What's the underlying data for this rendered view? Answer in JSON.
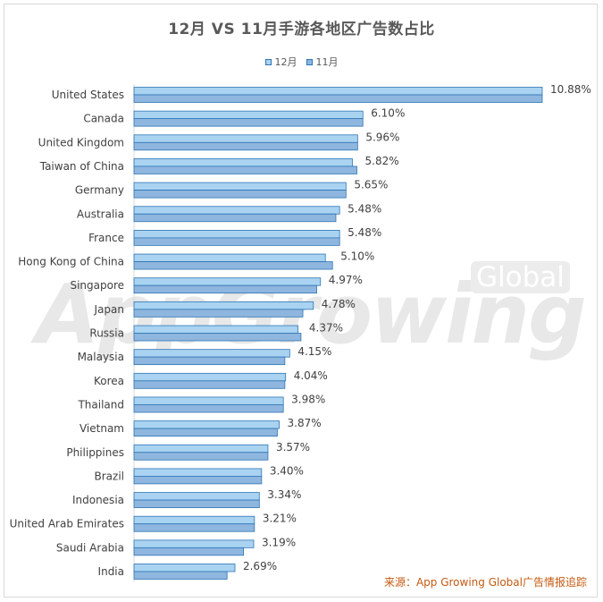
{
  "title": "12月 VS 11月手游各地区广告数占比",
  "source_label": "来源：App Growing Global广告情报追踪",
  "watermark": {
    "text": "AppGrowing",
    "badge": "Global"
  },
  "colors": {
    "dec": "#a9d3f1",
    "nov": "#8fb6de",
    "border": "#2e75b6"
  },
  "chart_data": {
    "type": "bar",
    "orientation": "horizontal",
    "title": "12月 VS 11月手游各地区广告数占比",
    "categories": [
      "United States",
      "Canada",
      "United Kingdom",
      "Taiwan of China",
      "Germany",
      "Australia",
      "France",
      "Hong Kong of China",
      "Singapore",
      "Japan",
      "Russia",
      "Malaysia",
      "Korea",
      "Thailand",
      "Vietnam",
      "Philippines",
      "Brazil",
      "Indonesia",
      "United Arab Emirates",
      "Saudi Arabia",
      "India"
    ],
    "series": [
      {
        "name": "12月",
        "values": [
          10.88,
          6.1,
          5.96,
          5.82,
          5.65,
          5.48,
          5.48,
          5.1,
          4.97,
          4.78,
          4.37,
          4.15,
          4.04,
          3.98,
          3.87,
          3.57,
          3.4,
          3.34,
          3.21,
          3.19,
          2.69
        ]
      },
      {
        "name": "11月",
        "values": [
          10.88,
          6.1,
          5.96,
          5.94,
          5.65,
          5.38,
          5.48,
          5.29,
          4.87,
          4.5,
          4.45,
          4.02,
          4.02,
          3.98,
          3.82,
          3.57,
          3.4,
          3.34,
          3.21,
          2.92,
          2.48
        ]
      }
    ],
    "data_labels": [
      "10.88%",
      "6.10%",
      "5.96%",
      "5.82%",
      "5.65%",
      "5.48%",
      "5.48%",
      "5.10%",
      "4.97%",
      "4.78%",
      "4.37%",
      "4.15%",
      "4.04%",
      "3.98%",
      "3.87%",
      "3.57%",
      "3.40%",
      "3.34%",
      "3.21%",
      "3.19%",
      "2.69%"
    ],
    "xlim": [
      0,
      10.88
    ],
    "legend": "top-center",
    "grid": false
  }
}
